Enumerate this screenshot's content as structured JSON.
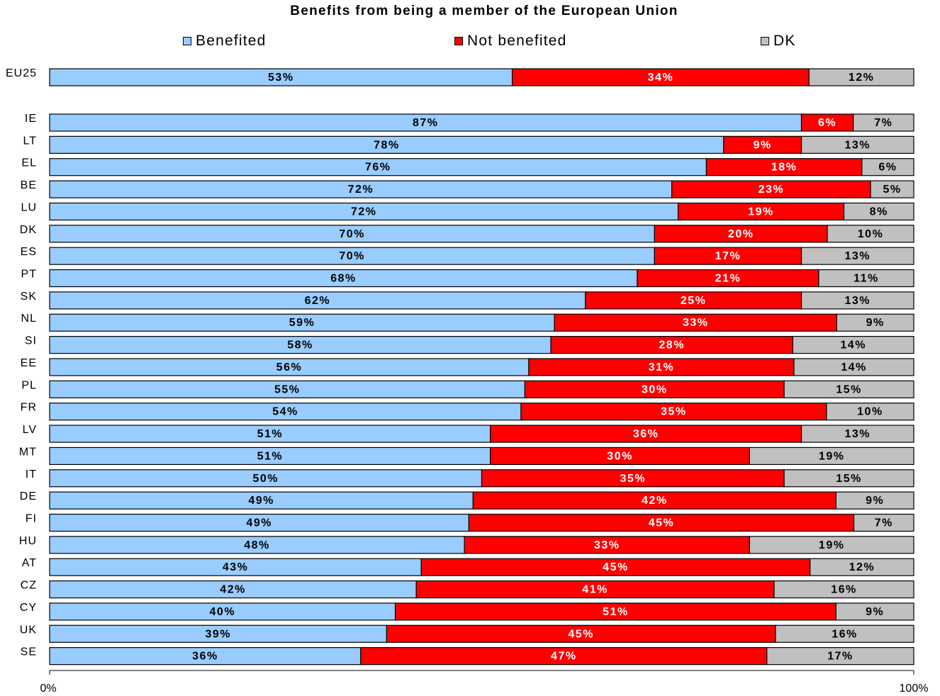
{
  "chart_data": {
    "type": "bar",
    "orientation": "horizontal",
    "stacked": "percent",
    "title": "Benefits from being a member of the European Union",
    "legend_position": "top",
    "categories": [
      "EU25",
      "IE",
      "LT",
      "EL",
      "BE",
      "LU",
      "DK",
      "ES",
      "PT",
      "SK",
      "NL",
      "SI",
      "EE",
      "PL",
      "FR",
      "LV",
      "MT",
      "IT",
      "DE",
      "FI",
      "HU",
      "AT",
      "CZ",
      "CY",
      "UK",
      "SE"
    ],
    "series": [
      {
        "name": "Benefited",
        "color": "#99ccff",
        "label_color": "#000000",
        "values": [
          53,
          87,
          78,
          76,
          72,
          72,
          70,
          70,
          68,
          62,
          59,
          58,
          56,
          55,
          54,
          51,
          51,
          50,
          49,
          49,
          48,
          43,
          42,
          40,
          39,
          36
        ],
        "labels": [
          "53%",
          "87%",
          "78%",
          "76%",
          "72%",
          "72%",
          "70%",
          "70%",
          "68%",
          "62%",
          "59%",
          "58%",
          "56%",
          "55%",
          "54%",
          "51%",
          "51%",
          "50%",
          "49%",
          "49%",
          "48%",
          "43%",
          "42%",
          "40%",
          "39%",
          "36%"
        ]
      },
      {
        "name": "Not benefited",
        "color": "#ff0000",
        "label_color": "#ffffff",
        "values": [
          34,
          6,
          9,
          18,
          23,
          19,
          20,
          17,
          21,
          25,
          33,
          28,
          31,
          30,
          35,
          36,
          30,
          35,
          42,
          45,
          33,
          45,
          41,
          51,
          45,
          47
        ],
        "labels": [
          "34%",
          "6%",
          "9%",
          "18%",
          "23%",
          "19%",
          "20%",
          "17%",
          "21%",
          "25%",
          "33%",
          "28%",
          "31%",
          "30%",
          "35%",
          "36%",
          "30%",
          "35%",
          "42%",
          "45%",
          "33%",
          "45%",
          "41%",
          "51%",
          "45%",
          "47%"
        ]
      },
      {
        "name": "DK",
        "color": "#c0c0c0",
        "label_color": "#000000",
        "values": [
          12,
          7,
          13,
          6,
          5,
          8,
          10,
          13,
          11,
          13,
          9,
          14,
          14,
          15,
          10,
          13,
          19,
          15,
          9,
          7,
          19,
          12,
          16,
          9,
          16,
          17
        ],
        "labels": [
          "12%",
          "7%",
          "13%",
          "6%",
          "5%",
          "8%",
          "10%",
          "13%",
          "11%",
          "13%",
          "9%",
          "14%",
          "14%",
          "15%",
          "10%",
          "13%",
          "19%",
          "15%",
          "9%",
          "7%",
          "19%",
          "12%",
          "16%",
          "9%",
          "16%",
          "17%"
        ]
      }
    ],
    "x_ticks": [
      "0%",
      "100%"
    ],
    "xlim": [
      0,
      100
    ],
    "grid": false
  }
}
